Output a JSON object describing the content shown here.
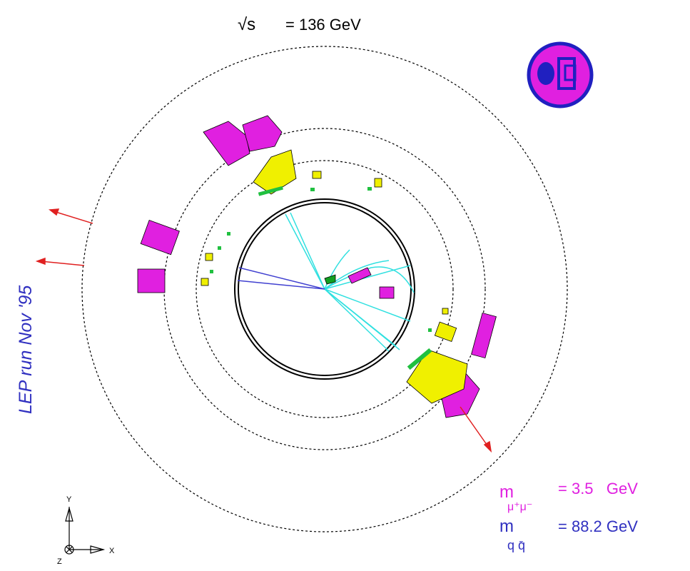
{
  "header": {
    "energy_symbol": "√s",
    "energy": "= 136 GeV"
  },
  "side_label": "LEP run Nov '95",
  "masses": [
    {
      "symbol": "m",
      "subscript": "μ⁺μ⁻",
      "value": "= 3.5   GeV"
    },
    {
      "symbol": "m",
      "subscript": "q q̄",
      "value": "= 88.2 GeV"
    }
  ],
  "axes": {
    "y": "Y",
    "z": "Z",
    "x": "X"
  }
}
